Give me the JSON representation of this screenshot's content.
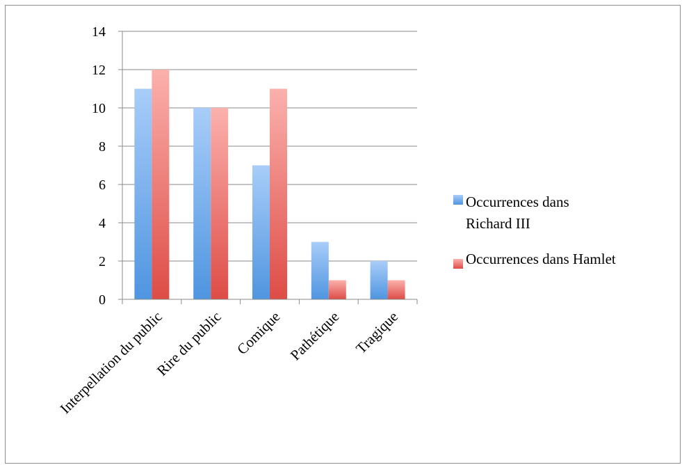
{
  "chart_data": {
    "type": "bar",
    "categories": [
      "Interpellation du public",
      "Rire du public",
      "Comique",
      "Pathétique",
      "Tragique"
    ],
    "series": [
      {
        "name": "Occurrences dans Richard III",
        "values": [
          11,
          10,
          7,
          3,
          2
        ],
        "color_top": "#a8cdf9",
        "color_bottom": "#4f95e0"
      },
      {
        "name": "Occurrences dans Hamlet",
        "values": [
          12,
          10,
          11,
          1,
          1
        ],
        "color_top": "#fbb1ad",
        "color_bottom": "#de4c46"
      }
    ],
    "yticks": [
      "0",
      "2",
      "4",
      "6",
      "8",
      "10",
      "12",
      "14"
    ],
    "ylim": [
      0,
      14
    ],
    "grid": true,
    "legend_position": "right",
    "title": "",
    "xlabel": "",
    "ylabel": ""
  }
}
